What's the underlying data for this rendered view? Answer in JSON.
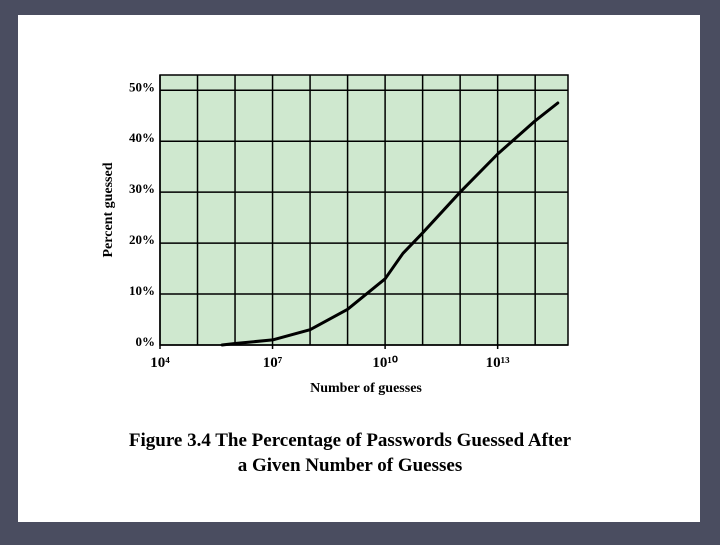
{
  "chart_data": {
    "type": "line",
    "x_label": "Number of guesses",
    "y_label": "Percent guessed",
    "caption": [
      "Figure 3.4  The Percentage of Passwords Guessed After",
      "a Given Number of Guesses"
    ],
    "x_log": true,
    "xlim": [
      10000,
      750000000000000
    ],
    "xticks": [
      {
        "value": 10000,
        "label": "10⁴"
      },
      {
        "value": 10000000,
        "label": "10⁷"
      },
      {
        "value": 10000000000,
        "label": "10¹⁰"
      },
      {
        "value": 10000000000000,
        "label": "10¹³"
      }
    ],
    "x_grid_lines": [
      10000,
      100000,
      1000000,
      10000000,
      100000000,
      1000000000,
      10000000000,
      100000000000,
      1000000000000,
      10000000000000,
      100000000000000
    ],
    "ylim": [
      0,
      53
    ],
    "yticks": [
      {
        "value": 0,
        "label": "0%"
      },
      {
        "value": 10,
        "label": "10%"
      },
      {
        "value": 20,
        "label": "20%"
      },
      {
        "value": 30,
        "label": "30%"
      },
      {
        "value": 40,
        "label": "40%"
      },
      {
        "value": 50,
        "label": "50%"
      }
    ],
    "grid": true,
    "background": "#cfe8cf",
    "color": "#000000",
    "x": [
      450000,
      1000000,
      10000000,
      100000000,
      1000000000,
      10000000000,
      30000000000,
      100000000000,
      1000000000000,
      10000000000000,
      100000000000000,
      400000000000000
    ],
    "values": [
      0,
      0.3,
      1,
      3,
      7,
      13,
      18,
      22,
      30,
      37.5,
      44,
      47.5
    ]
  }
}
